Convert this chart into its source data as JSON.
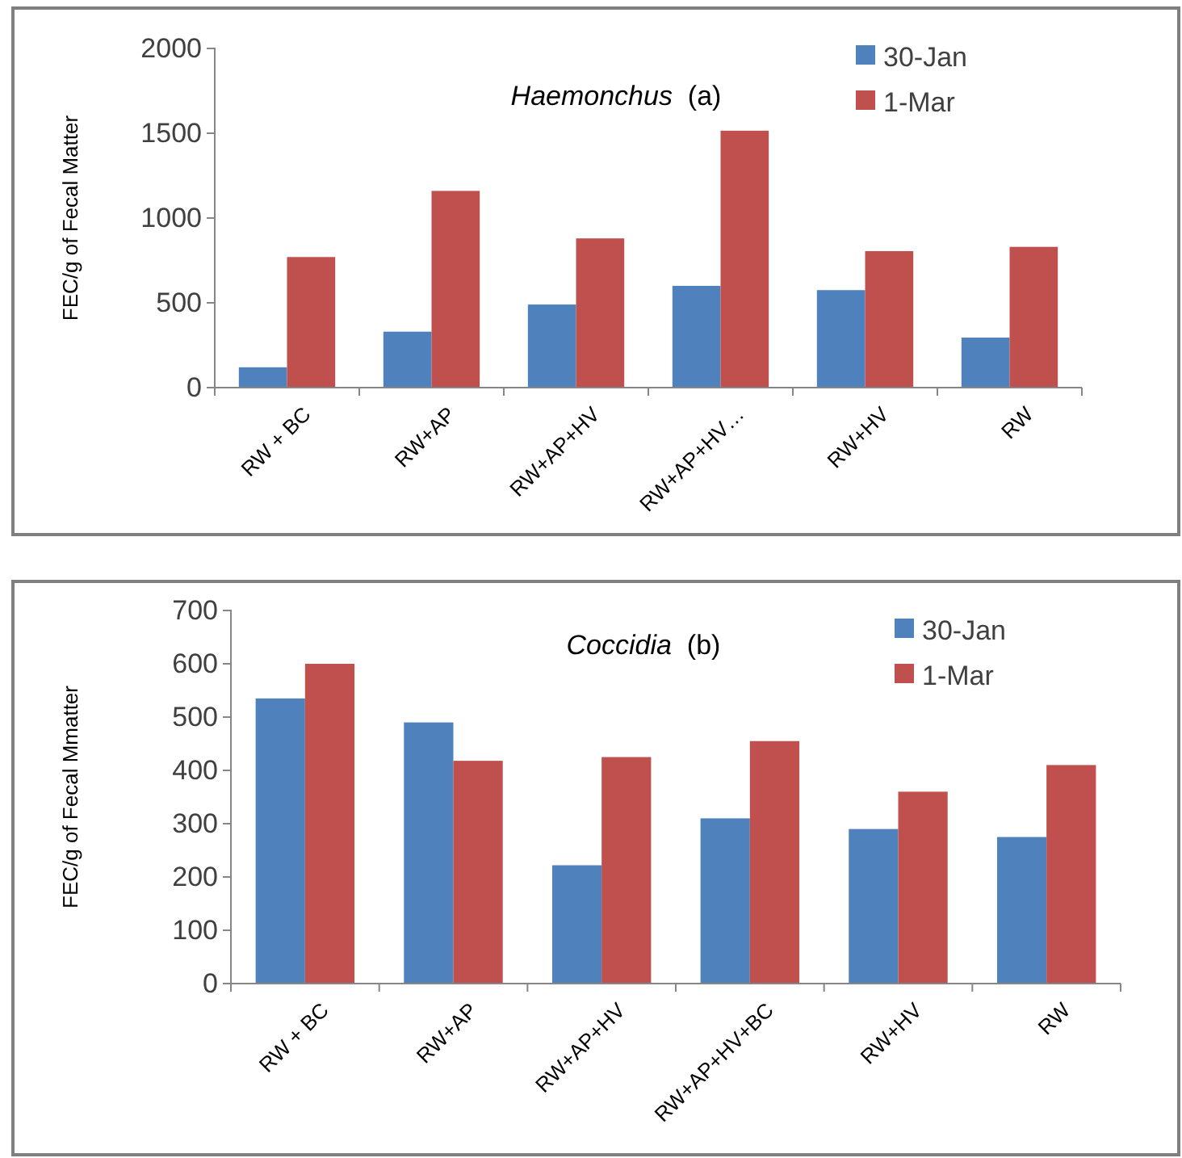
{
  "chart_data": [
    {
      "type": "bar",
      "title": "Haemonchus  (a)",
      "ylabel": "FEC/g of Fecal Matter",
      "categories": [
        "RW + BC",
        "RW+AP",
        "RW+AP+HV",
        "RW+AP+HV…",
        "RW+HV",
        "RW"
      ],
      "series": [
        {
          "name": "30-Jan",
          "color": "#4f81bd",
          "values": [
            120,
            330,
            490,
            600,
            575,
            295
          ]
        },
        {
          "name": "1-Mar",
          "color": "#c0504d",
          "values": [
            770,
            1160,
            880,
            1515,
            805,
            830
          ]
        }
      ],
      "ylim": [
        0,
        2000
      ],
      "yticks": [
        0,
        500,
        1000,
        1500,
        2000
      ],
      "legend": "top right"
    },
    {
      "type": "bar",
      "title": "Coccidia  (b)",
      "ylabel": "FEC/g of Fecal Mmatter",
      "categories": [
        "RW + BC",
        "RW+AP",
        "RW+AP+HV",
        "RW+AP+HV+BC",
        "RW+HV",
        "RW"
      ],
      "series": [
        {
          "name": "30-Jan",
          "color": "#4f81bd",
          "values": [
            535,
            490,
            222,
            310,
            290,
            275
          ]
        },
        {
          "name": "1-Mar",
          "color": "#c0504d",
          "values": [
            600,
            418,
            425,
            455,
            360,
            410
          ]
        }
      ],
      "ylim": [
        0,
        700
      ],
      "yticks": [
        0,
        100,
        200,
        300,
        400,
        500,
        600,
        700
      ],
      "legend": "top right"
    }
  ]
}
